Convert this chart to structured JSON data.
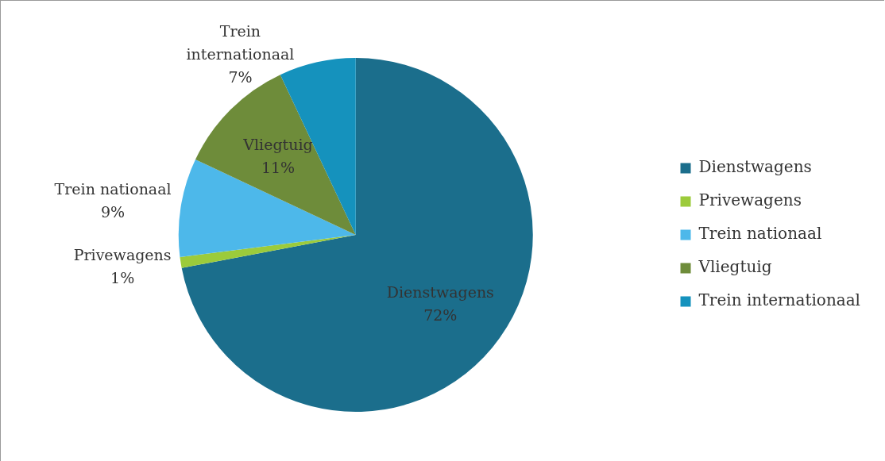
{
  "chart_data": {
    "type": "pie",
    "categories": [
      "Dienstwagens",
      "Privewagens",
      "Trein nationaal",
      "Vliegtuig",
      "Trein internationaal"
    ],
    "values": [
      72,
      1,
      9,
      11,
      7
    ],
    "colors": [
      "#1b6e8c",
      "#9ccb3b",
      "#4db8ea",
      "#6e8c3a",
      "#1592bd"
    ],
    "value_labels": [
      "72%",
      "1%",
      "9%",
      "11%",
      "7%"
    ],
    "legend": "right"
  }
}
